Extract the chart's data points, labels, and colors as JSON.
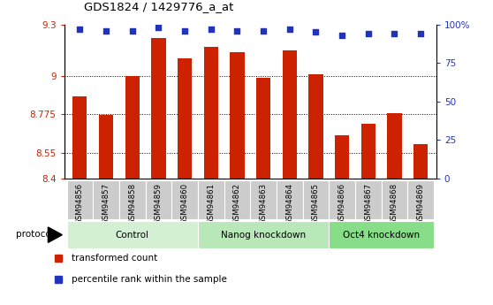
{
  "title": "GDS1824 / 1429776_a_at",
  "samples": [
    "GSM94856",
    "GSM94857",
    "GSM94858",
    "GSM94859",
    "GSM94860",
    "GSM94861",
    "GSM94862",
    "GSM94863",
    "GSM94864",
    "GSM94865",
    "GSM94866",
    "GSM94867",
    "GSM94868",
    "GSM94869"
  ],
  "bar_values": [
    8.88,
    8.77,
    9.0,
    9.22,
    9.1,
    9.17,
    9.14,
    8.99,
    9.15,
    9.01,
    8.65,
    8.72,
    8.78,
    8.6
  ],
  "percentile_values": [
    97,
    96,
    96,
    98,
    96,
    97,
    96,
    96,
    97,
    95,
    93,
    94,
    94,
    94
  ],
  "ylim_left": [
    8.4,
    9.3
  ],
  "ylim_right": [
    0,
    100
  ],
  "yticks_left": [
    8.4,
    8.55,
    8.775,
    9.0,
    9.3
  ],
  "ytick_labels_left": [
    "8.4",
    "8.55",
    "8.775",
    "9",
    "9.3"
  ],
  "yticks_right": [
    0,
    25,
    50,
    75,
    100
  ],
  "ytick_labels_right": [
    "0",
    "25",
    "50",
    "75",
    "100%"
  ],
  "bar_color": "#cc2200",
  "dot_color": "#2233bb",
  "grid_ticks": [
    8.55,
    8.775,
    9.0
  ],
  "groups": [
    {
      "label": "Control",
      "start": 0,
      "end": 5,
      "color": "#d4f0d4"
    },
    {
      "label": "Nanog knockdown",
      "start": 5,
      "end": 10,
      "color": "#b8e8b8"
    },
    {
      "label": "Oct4 knockdown",
      "start": 10,
      "end": 14,
      "color": "#88dd88"
    }
  ],
  "legend_items": [
    {
      "label": "transformed count",
      "color": "#cc2200"
    },
    {
      "label": "percentile rank within the sample",
      "color": "#2233bb"
    }
  ],
  "protocol_label": "protocol",
  "background_color": "#ffffff",
  "tick_label_color_left": "#cc2200",
  "tick_label_color_right": "#2233bb",
  "tick_bg_color": "#cccccc"
}
